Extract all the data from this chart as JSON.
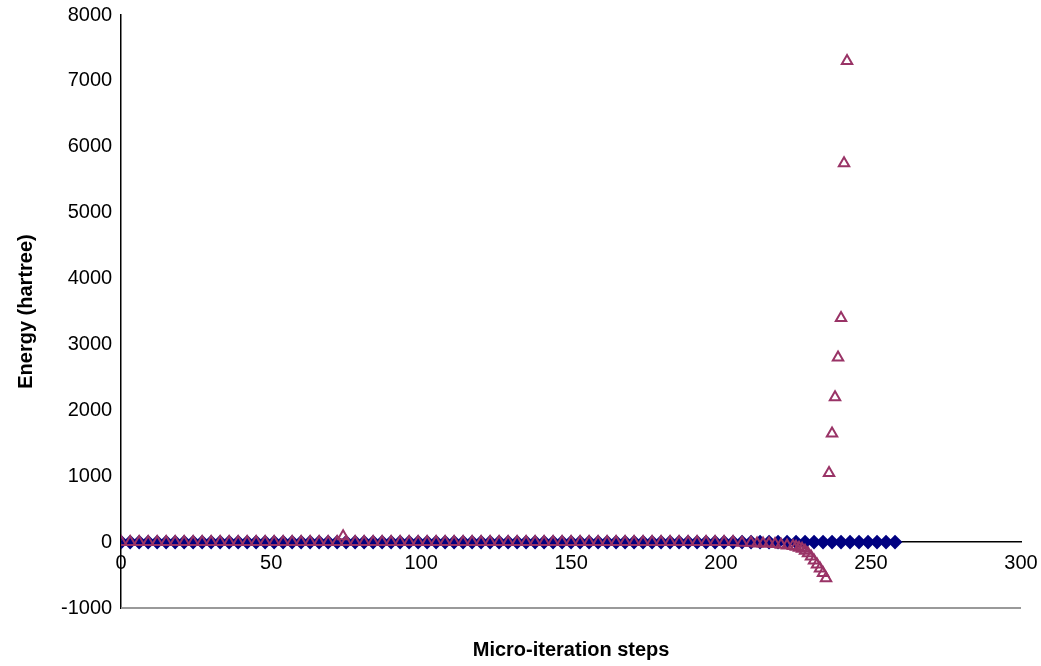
{
  "chart_data": {
    "type": "scatter",
    "xlabel": "Micro-iteration steps",
    "ylabel": "Energy (hartree)",
    "xlim": [
      0,
      300
    ],
    "xticks": [
      0,
      50,
      100,
      150,
      200,
      250,
      300
    ],
    "ylim": [
      -1000,
      8000
    ],
    "yticks": [
      -1000,
      0,
      1000,
      2000,
      3000,
      4000,
      5000,
      6000,
      7000,
      8000
    ],
    "grid": false,
    "legend": false,
    "series": [
      {
        "color": "#000080",
        "marker": "diamond",
        "x": [
          0,
          3,
          6,
          9,
          12,
          15,
          18,
          21,
          24,
          27,
          30,
          33,
          36,
          39,
          42,
          45,
          48,
          51,
          54,
          57,
          60,
          63,
          66,
          69,
          72,
          75,
          78,
          81,
          84,
          87,
          90,
          93,
          96,
          99,
          102,
          105,
          108,
          111,
          114,
          117,
          120,
          123,
          126,
          129,
          132,
          135,
          138,
          141,
          144,
          147,
          150,
          153,
          156,
          159,
          162,
          165,
          168,
          171,
          174,
          177,
          180,
          183,
          186,
          189,
          192,
          195,
          198,
          201,
          204,
          207,
          210,
          213,
          216,
          219,
          222,
          225,
          228,
          231,
          234,
          237,
          240,
          243,
          246,
          249,
          252,
          255,
          258
        ],
        "values": [
          0,
          0,
          0,
          0,
          0,
          0,
          0,
          0,
          0,
          0,
          0,
          0,
          0,
          0,
          0,
          0,
          0,
          0,
          0,
          0,
          0,
          0,
          0,
          0,
          0,
          0,
          0,
          0,
          0,
          0,
          0,
          0,
          0,
          0,
          0,
          0,
          0,
          0,
          0,
          0,
          0,
          0,
          0,
          0,
          0,
          0,
          0,
          0,
          0,
          0,
          0,
          0,
          0,
          0,
          0,
          0,
          0,
          0,
          0,
          0,
          0,
          0,
          0,
          0,
          0,
          0,
          0,
          0,
          0,
          0,
          0,
          0,
          0,
          0,
          0,
          0,
          0,
          0,
          0,
          0,
          0,
          0,
          0,
          0,
          0,
          0,
          0
        ]
      },
      {
        "color": "#993366",
        "marker": "triangle",
        "x": [
          0,
          3,
          6,
          9,
          12,
          15,
          18,
          21,
          24,
          27,
          30,
          33,
          36,
          39,
          42,
          45,
          48,
          51,
          54,
          57,
          60,
          63,
          66,
          69,
          72,
          74,
          75,
          78,
          81,
          84,
          87,
          90,
          93,
          96,
          99,
          102,
          105,
          108,
          111,
          114,
          117,
          120,
          123,
          126,
          129,
          132,
          135,
          138,
          141,
          144,
          147,
          150,
          153,
          156,
          159,
          162,
          165,
          168,
          171,
          174,
          177,
          180,
          183,
          186,
          189,
          192,
          195,
          198,
          201,
          204,
          207,
          210,
          212,
          214,
          216,
          218,
          220,
          222,
          224,
          225,
          226,
          227,
          228,
          229,
          230,
          231,
          232,
          233,
          234,
          235,
          236,
          237,
          238,
          239,
          240,
          241,
          242
        ],
        "values": [
          0,
          0,
          0,
          0,
          0,
          0,
          0,
          0,
          0,
          0,
          0,
          0,
          0,
          0,
          0,
          0,
          0,
          0,
          0,
          0,
          0,
          0,
          0,
          0,
          0,
          90,
          0,
          0,
          0,
          0,
          0,
          0,
          0,
          0,
          0,
          0,
          0,
          0,
          0,
          0,
          0,
          0,
          0,
          0,
          0,
          0,
          0,
          0,
          0,
          0,
          0,
          0,
          0,
          0,
          0,
          0,
          0,
          0,
          0,
          0,
          0,
          0,
          0,
          0,
          0,
          0,
          0,
          0,
          0,
          0,
          -10,
          -10,
          -20,
          -20,
          -20,
          -30,
          -40,
          -50,
          -60,
          -70,
          -85,
          -100,
          -130,
          -170,
          -220,
          -280,
          -340,
          -400,
          -470,
          -550,
          1050,
          1650,
          2200,
          2800,
          3400,
          5750,
          7300
        ]
      }
    ]
  }
}
